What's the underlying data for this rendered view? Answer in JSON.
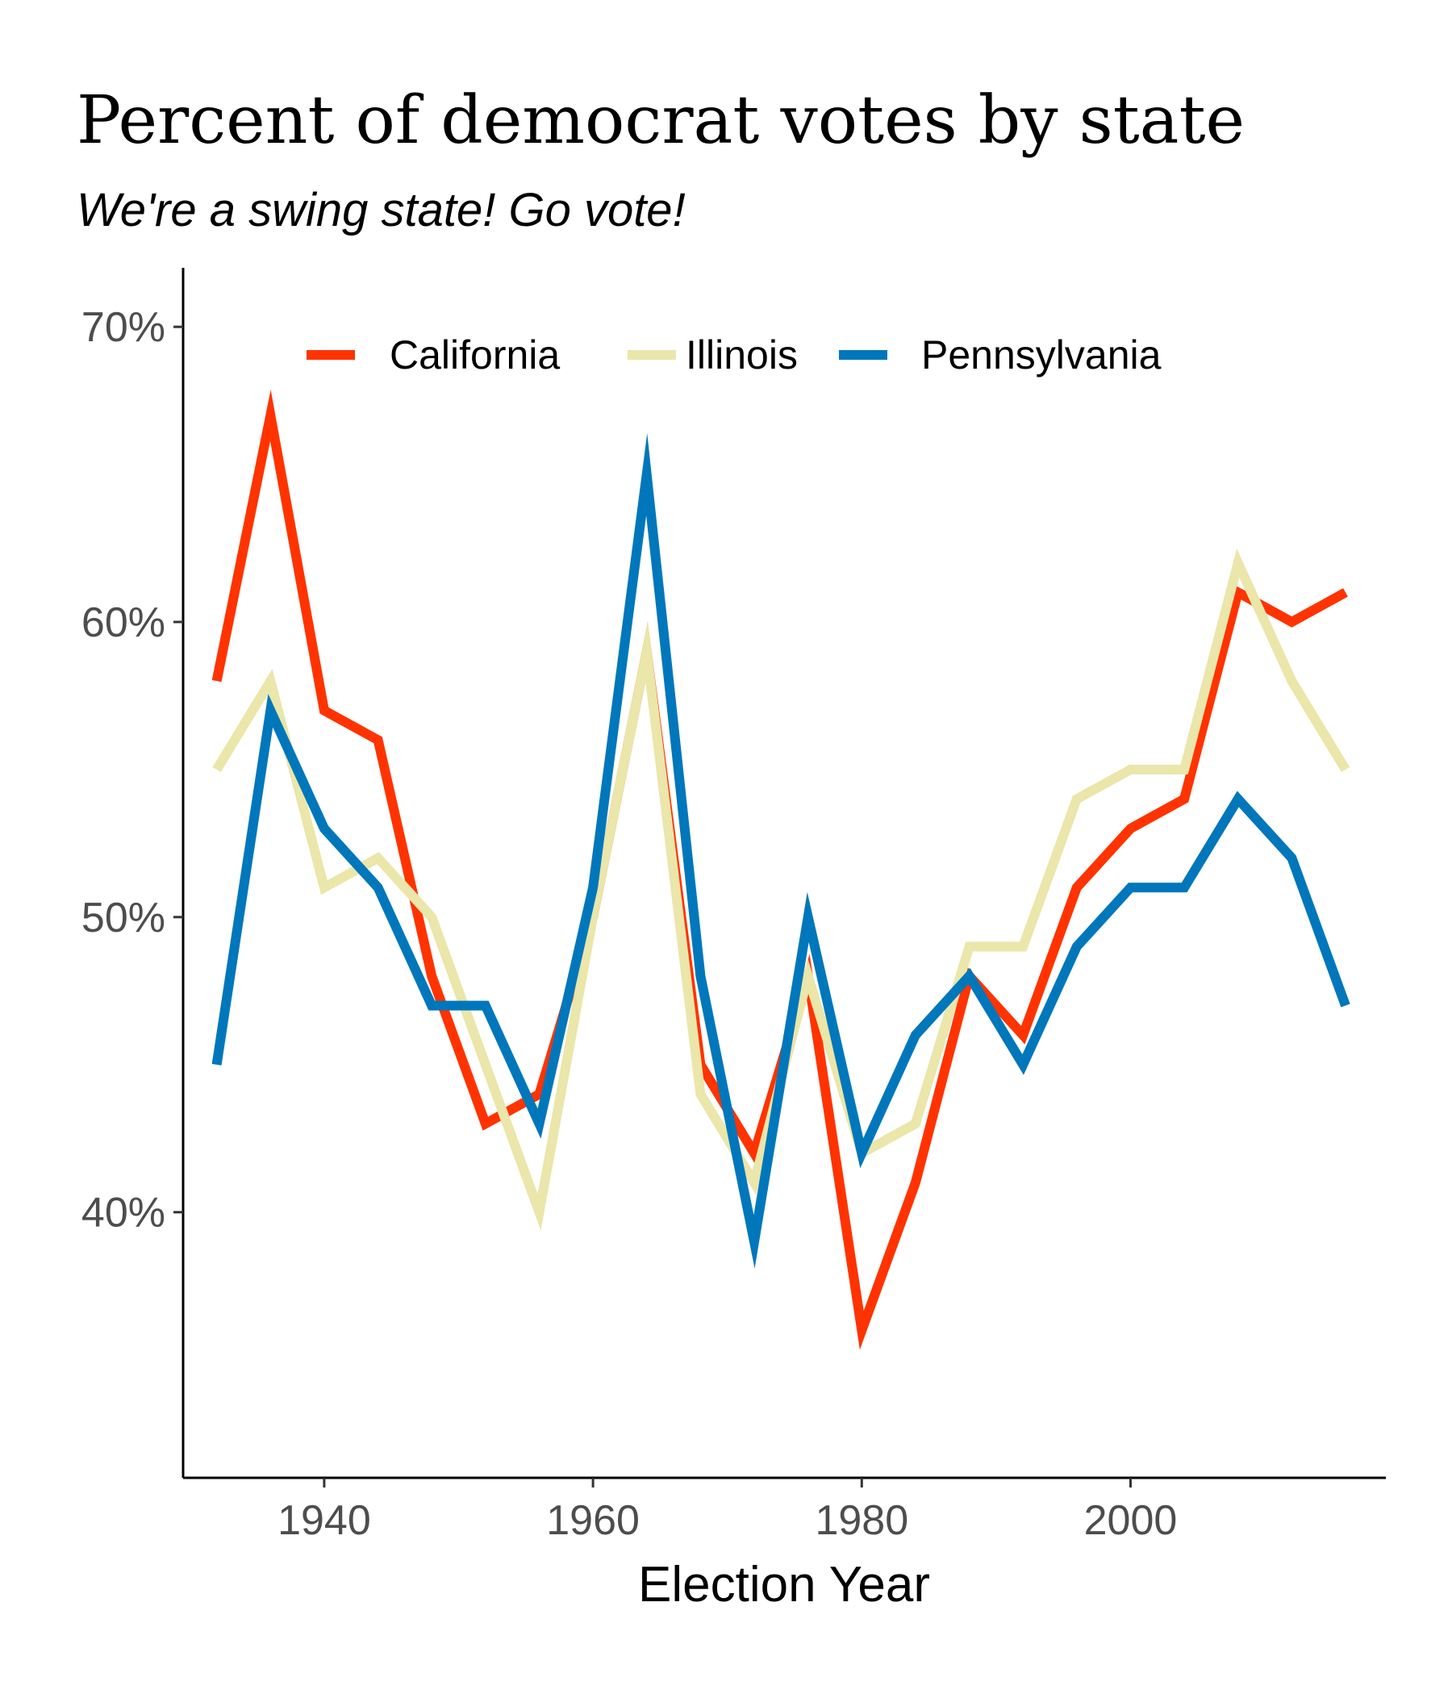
{
  "chart_data": {
    "type": "line",
    "title": "Percent of democrat votes by state",
    "subtitle": "We're a swing state! Go vote!",
    "xlabel": "Election Year",
    "ylabel": "",
    "xlim": [
      1929.5,
      2019
    ],
    "ylim": [
      31,
      72
    ],
    "x_ticks": [
      1940,
      1960,
      1980,
      2000
    ],
    "x_tick_labels": [
      "1940",
      "1960",
      "1980",
      "2000"
    ],
    "y_ticks": [
      40,
      50,
      60,
      70
    ],
    "y_tick_labels": [
      "40%",
      "50%",
      "60%",
      "70%"
    ],
    "grid": false,
    "legend_position": "top-inside",
    "x": [
      1932,
      1936,
      1940,
      1944,
      1948,
      1952,
      1956,
      1960,
      1964,
      1968,
      1972,
      1976,
      1980,
      1984,
      1988,
      1992,
      1996,
      2000,
      2004,
      2008,
      2012,
      2016
    ],
    "series": [
      {
        "name": "California",
        "color": "#ff3300",
        "values": [
          58,
          67,
          57,
          56,
          48,
          43,
          44,
          50,
          59,
          45,
          42,
          48,
          36,
          41,
          48,
          46,
          51,
          53,
          54,
          61,
          60,
          61
        ]
      },
      {
        "name": "Illinois",
        "color": "#ebe6aa",
        "values": [
          55,
          58,
          51,
          52,
          50,
          45,
          40,
          50,
          59,
          44,
          41,
          48,
          42,
          43,
          49,
          49,
          54,
          55,
          55,
          62,
          58,
          55
        ]
      },
      {
        "name": "Pennsylvania",
        "color": "#0077bb",
        "values": [
          45,
          57,
          53,
          51,
          47,
          47,
          43,
          51,
          65,
          48,
          39,
          50,
          42,
          46,
          48,
          45,
          49,
          51,
          51,
          54,
          52,
          47
        ]
      }
    ]
  }
}
